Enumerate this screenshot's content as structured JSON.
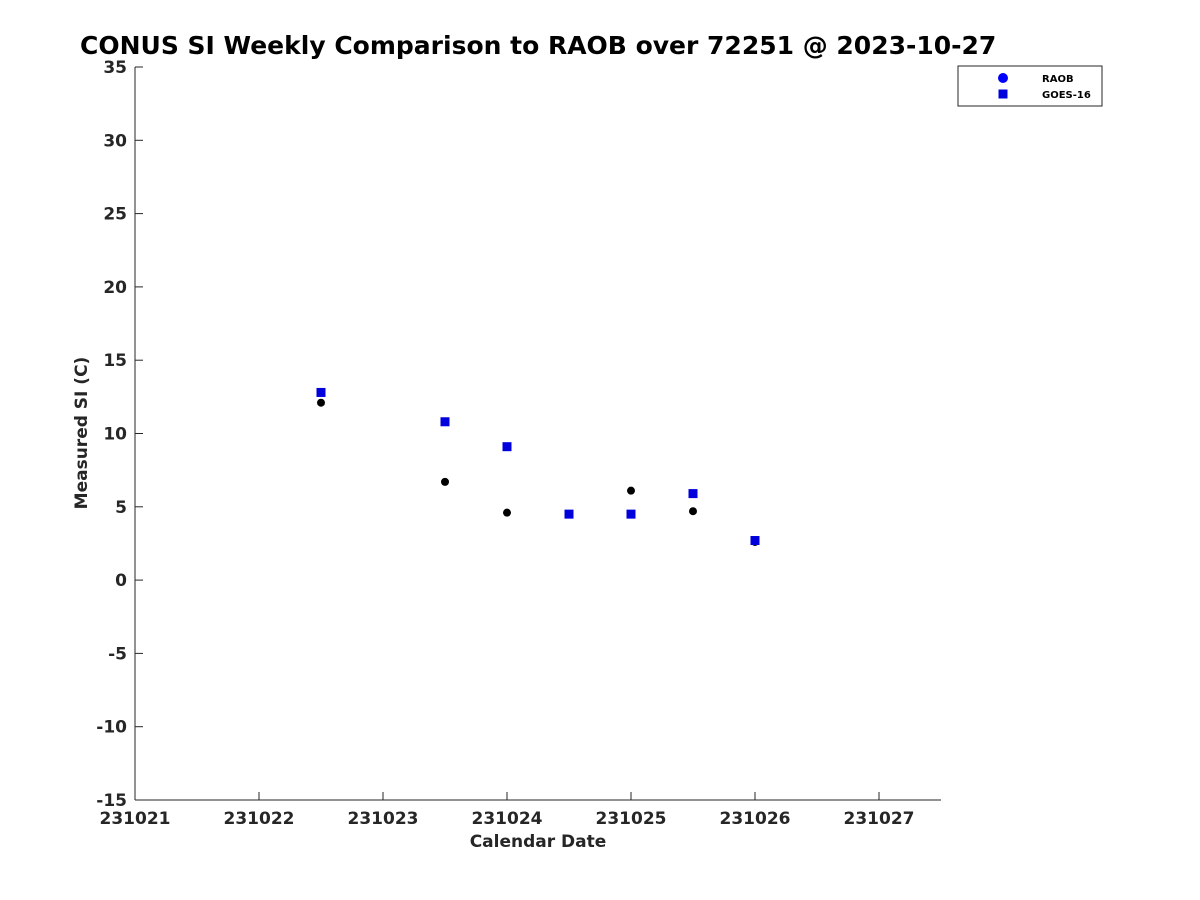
{
  "chart_data": {
    "type": "scatter",
    "title": "CONUS SI Weekly Comparison to RAOB over 72251 @ 2023-10-27",
    "xlabel": "Calendar Date",
    "ylabel": "Measured SI (C)",
    "xlim": [
      231021,
      231027.5
    ],
    "ylim": [
      -15,
      35
    ],
    "xticks": [
      231021,
      231022,
      231023,
      231024,
      231025,
      231026,
      231027
    ],
    "xtick_labels": [
      "231021",
      "231022",
      "231023",
      "231024",
      "231025",
      "231026",
      "231027"
    ],
    "yticks": [
      -15,
      -10,
      -5,
      0,
      5,
      10,
      15,
      20,
      25,
      30,
      35
    ],
    "ytick_labels": [
      "-15",
      "-10",
      "-5",
      "0",
      "5",
      "10",
      "15",
      "20",
      "25",
      "30",
      "35"
    ],
    "legend_position": "top-right",
    "series": [
      {
        "name": "RAOB",
        "marker": "circle",
        "color": "#000000",
        "legend_color": "#0000ff",
        "x": [
          231022.5,
          231023.5,
          231024.0,
          231025.0,
          231025.5,
          231026.0
        ],
        "y": [
          12.1,
          6.7,
          4.6,
          6.1,
          4.7,
          2.6
        ]
      },
      {
        "name": "GOES-16",
        "marker": "square",
        "color": "#0000dd",
        "legend_color": "#0000dd",
        "x": [
          231022.5,
          231023.5,
          231024.0,
          231024.5,
          231025.0,
          231025.5,
          231026.0
        ],
        "y": [
          12.8,
          10.8,
          9.1,
          4.5,
          4.5,
          5.9,
          2.7
        ]
      }
    ]
  }
}
